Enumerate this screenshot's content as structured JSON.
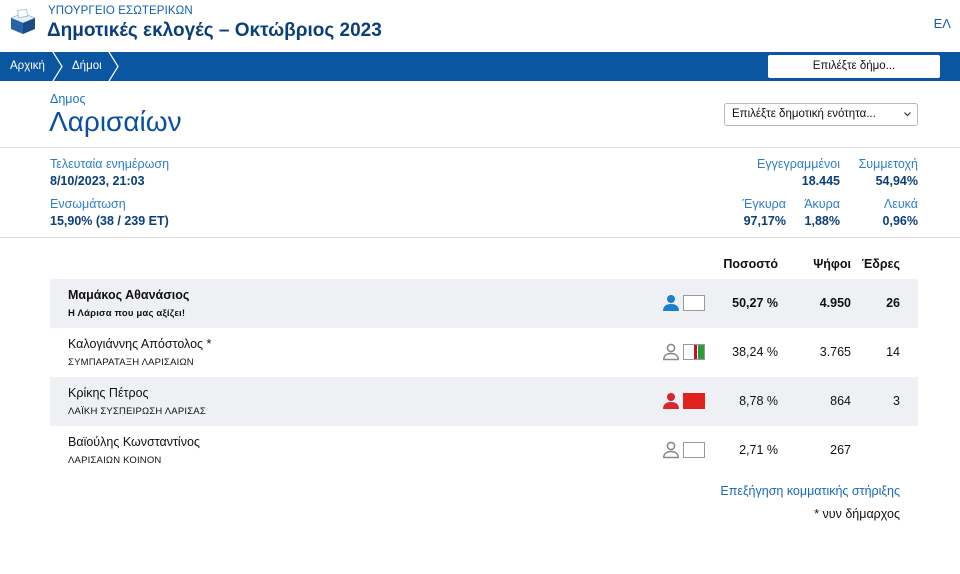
{
  "header": {
    "ministry": "ΥΠΟΥΡΓΕΙΟ ΕΣΩΤΕΡΙΚΩΝ",
    "title": "Δημοτικές εκλογές – Οκτώβριος 2023",
    "language": "ΕΛ",
    "logo_icon": "ballot-box-icon"
  },
  "breadcrumb": {
    "items": [
      "Αρχική",
      "Δήμοι"
    ],
    "municipality_select": "Επιλέξτε δήμο..."
  },
  "municipality": {
    "kind": "Δημος",
    "name": "Λαρισαίων",
    "unit_select": "Επιλέξτε δημοτική ενότητα..."
  },
  "stats": {
    "last_update_label": "Τελευταία ενημέρωση",
    "last_update_value": "8/10/2023, 21:03",
    "integration_label": "Ενσωμάτωση",
    "integration_value": "15,90% (38 / 239 ΕΤ)",
    "registered_label": "Εγγεγραμμένοι",
    "registered_value": "18.445",
    "turnout_label": "Συμμετοχή",
    "turnout_value": "54,94%",
    "valid_label": "Έγκυρα",
    "valid_value": "97,17%",
    "invalid_label": "Άκυρα",
    "invalid_value": "1,88%",
    "blank_label": "Λευκά",
    "blank_value": "0,96%"
  },
  "results": {
    "headers": {
      "percent": "Ποσοστό",
      "votes": "Ψήφοι",
      "seats": "Έδρες"
    },
    "rows": [
      {
        "candidate": "Μαμάκος Αθανάσιος",
        "party": "Η Λάρισα που μας αξίζει!",
        "percent": "50,27 %",
        "votes": "4.950",
        "seats": "26",
        "person_color": "#1a7fcf",
        "flag": "blank"
      },
      {
        "candidate": "Καλογιάννης Απόστολος *",
        "party": "ΣΥΜΠΑΡΑΤΑΞΗ ΛΑΡΙΣΑΙΩΝ",
        "percent": "38,24 %",
        "votes": "3.765",
        "seats": "14",
        "person_color": "#8a8a8a",
        "flag": "tricolor"
      },
      {
        "candidate": "Κρίκης Πέτρος",
        "party": "ΛΑΪΚΗ ΣΥΣΠΕΙΡΩΣΗ ΛΑΡΙΣΑΣ",
        "percent": "8,78 %",
        "votes": "864",
        "seats": "3",
        "person_color": "#d9262c",
        "flag": "red"
      },
      {
        "candidate": "Βαϊούλης Κωνσταντίνος",
        "party": "ΛΑΡΙΣΑΙΩΝ ΚΟΙΝΟΝ",
        "percent": "2,71 %",
        "votes": "267",
        "seats": "",
        "person_color": "#8a8a8a",
        "flag": "blank"
      }
    ]
  },
  "footer": {
    "explain_link": "Επεξήγηση κομματικής στήριξης",
    "footnote": "* νυν δήμαρχος"
  },
  "colors": {
    "navbar": "#0a56a1",
    "title": "#0b3f7a",
    "link": "#1a68b8",
    "row_shade": "#eef0f3"
  }
}
